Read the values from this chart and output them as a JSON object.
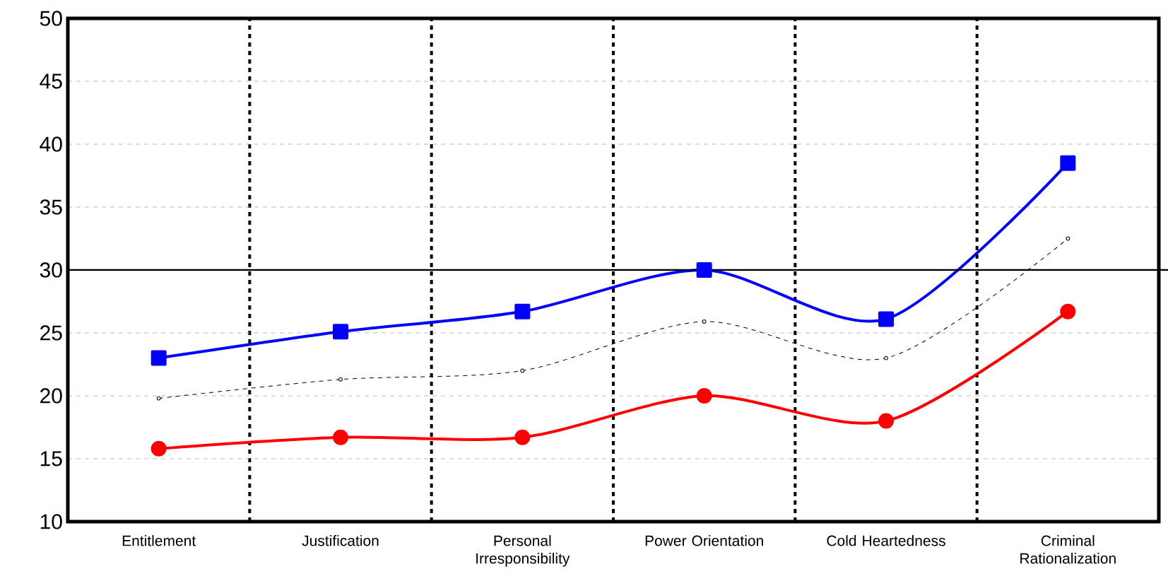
{
  "chart_data": {
    "type": "line",
    "categories": [
      "Entitlement",
      "Justification",
      "Personal Irresponsibility",
      "Power Orientation",
      "Cold Heartedness",
      "Criminal Rationalization"
    ],
    "series": [
      {
        "color": "#0000ff",
        "marker": "square",
        "line_style": "solid",
        "values": [
          23,
          25.1,
          26.7,
          30,
          26.1,
          38.5
        ]
      },
      {
        "color": "#000000",
        "marker": "circle",
        "line_style": "dashed",
        "values": [
          19.8,
          21.3,
          22,
          25.9,
          23,
          32.5
        ]
      },
      {
        "color": "#ff0000",
        "marker": "circle",
        "line_style": "solid",
        "values": [
          15.8,
          16.7,
          16.7,
          20,
          18,
          26.7
        ]
      }
    ],
    "ylim": [
      10,
      50
    ],
    "yticks": [
      10,
      15,
      20,
      25,
      30,
      35,
      40,
      45,
      50
    ],
    "grid": true,
    "ref_lines": [
      {
        "axis": "y",
        "value": 30,
        "color": "#000000",
        "line_style": "solid"
      }
    ]
  }
}
